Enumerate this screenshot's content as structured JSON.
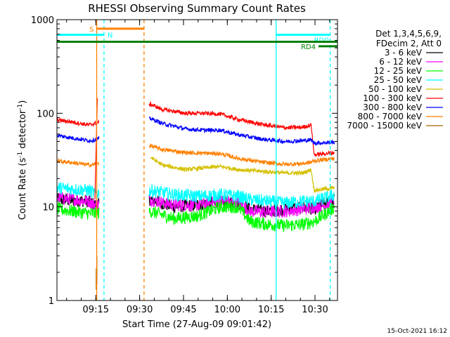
{
  "chart_data": {
    "type": "line",
    "title": "RHESSI Observing Summary Count Rates",
    "xlabel": "Start Time (27-Aug-09 09:01:42)",
    "ylabel_main": "Count Rate (s",
    "ylabel_sup1": "-1",
    "ylabel_mid": " detector",
    "ylabel_sup2": "-1",
    "ylabel_end": ")",
    "y_scale": "log",
    "ylim": [
      1,
      1000
    ],
    "xlim_minutes": [
      0,
      96
    ],
    "x_ticks": [
      {
        "label": "09:15",
        "minute": 13.3
      },
      {
        "label": "09:30",
        "minute": 28.3
      },
      {
        "label": "09:45",
        "minute": 43.3
      },
      {
        "label": "10:00",
        "minute": 58.3
      },
      {
        "label": "10:15",
        "minute": 73.3
      },
      {
        "label": "10:30",
        "minute": 88.3
      }
    ],
    "y_ticks": [
      {
        "label": "1",
        "value": 1
      },
      {
        "label": "10",
        "value": 10
      },
      {
        "label": "100",
        "value": 100
      },
      {
        "label": "1000",
        "value": 1000
      }
    ],
    "legend": {
      "header1": "Det 1,3,4,5,6,9,",
      "header2": "FDecim 2, Att 0",
      "placement": "right",
      "entries": [
        {
          "label": "3 - 6 keV",
          "color": "#000000"
        },
        {
          "label": "6 - 12 keV",
          "color": "#ff00ff"
        },
        {
          "label": "12 - 25 keV",
          "color": "#00ff00"
        },
        {
          "label": "25 - 50 keV",
          "color": "#00ffff"
        },
        {
          "label": "50 - 100 keV",
          "color": "#d4c000"
        },
        {
          "label": "100 - 300 keV",
          "color": "#ff0000"
        },
        {
          "label": "300 - 800 keV",
          "color": "#0000ff"
        },
        {
          "label": "800 - 7000 keV",
          "color": "#ff8000"
        },
        {
          "label": "7000 - 15000 keV",
          "color": "#a06000"
        }
      ]
    },
    "gaps_minutes": [
      [
        14.5,
        31.5
      ]
    ],
    "series": [
      {
        "name": "3 - 6 keV",
        "color": "#000000",
        "x": [
          0,
          11,
          13,
          32,
          40,
          48,
          56,
          62,
          66,
          72,
          78,
          84,
          88,
          92,
          95
        ],
        "y": [
          12,
          11.5,
          10.5,
          12,
          10,
          10.5,
          11.5,
          11,
          9.5,
          9,
          9.5,
          10,
          9.5,
          11,
          12
        ]
      },
      {
        "name": "6 - 12 keV",
        "color": "#ff00ff",
        "x": [
          0,
          11,
          13,
          32,
          40,
          48,
          56,
          62,
          66,
          72,
          78,
          84,
          88,
          92,
          95
        ],
        "y": [
          12.5,
          11.5,
          10.5,
          12,
          10.5,
          10.5,
          11.5,
          11,
          9,
          8.8,
          9,
          9.5,
          10,
          10.5,
          12
        ]
      },
      {
        "name": "12 - 25 keV",
        "color": "#00ff00",
        "x": [
          0,
          11,
          13,
          32,
          40,
          48,
          56,
          62,
          66,
          72,
          78,
          84,
          88,
          92,
          95
        ],
        "y": [
          9.5,
          8.5,
          8.5,
          9,
          7.5,
          8,
          10,
          10,
          7,
          6.5,
          6.3,
          6.5,
          7,
          8.5,
          10
        ]
      },
      {
        "name": "25 - 50 keV",
        "color": "#00ffff",
        "x": [
          0,
          11,
          13,
          32,
          40,
          48,
          56,
          62,
          66,
          72,
          78,
          84,
          88,
          92,
          95
        ],
        "y": [
          16,
          15,
          14,
          15,
          13.5,
          13,
          13.5,
          13,
          12,
          11.5,
          11,
          11.5,
          11.5,
          12.5,
          13.5
        ]
      },
      {
        "name": "50 - 100 keV",
        "color": "#d4c000",
        "x": [
          32,
          36,
          44,
          50,
          56,
          62,
          70,
          78,
          84,
          87,
          88,
          95
        ],
        "y": [
          34,
          28,
          25,
          26,
          27,
          25,
          24,
          23,
          23,
          25,
          15,
          16
        ]
      },
      {
        "name": "100 - 300 keV",
        "color": "#ff0000",
        "x": [
          0,
          6,
          11,
          13,
          32,
          36,
          44,
          50,
          56,
          62,
          70,
          78,
          84,
          87,
          88,
          95
        ],
        "y": [
          85,
          80,
          75,
          78,
          125,
          110,
          100,
          100,
          98,
          86,
          76,
          70,
          71,
          75,
          36,
          38
        ]
      },
      {
        "name": "300 - 800 keV",
        "color": "#0000ff",
        "x": [
          0,
          6,
          11,
          13,
          32,
          36,
          44,
          50,
          56,
          62,
          70,
          78,
          84,
          87,
          88,
          95
        ],
        "y": [
          58,
          54,
          51,
          52,
          88,
          78,
          68,
          66,
          66,
          59,
          53,
          50,
          51,
          52,
          48,
          49
        ]
      },
      {
        "name": "800 - 7000 keV",
        "color": "#ff8000",
        "x": [
          0,
          6,
          11,
          13,
          32,
          36,
          44,
          50,
          56,
          62,
          70,
          78,
          84,
          87,
          88,
          95
        ],
        "y": [
          31,
          29.5,
          28,
          28.5,
          45,
          41,
          38,
          37.5,
          37,
          33,
          30,
          28.5,
          29,
          30,
          31,
          33
        ]
      }
    ],
    "spike": {
      "x_minutes": 13.8,
      "peak": 145
    },
    "brown_spikes": [
      [
        13.4,
        1.3,
        2.2
      ],
      [
        13.7,
        1.5,
        3.0
      ]
    ],
    "vertical_lines": [
      {
        "x_minutes": 13.6,
        "color": "#ff8000",
        "style": "solid"
      },
      {
        "x_minutes": 16.1,
        "color": "#00ffff",
        "style": "dashed"
      },
      {
        "x_minutes": 29.8,
        "color": "#ff8000",
        "style": "dashed"
      },
      {
        "x_minutes": 75.0,
        "color": "#00ffff",
        "style": "solid"
      },
      {
        "x_minutes": 93.5,
        "color": "#00ffff",
        "style": "dashed"
      }
    ],
    "flag_bars": [
      {
        "label": "S",
        "label_side": "left",
        "color": "#ff8000",
        "x_start": 13.6,
        "x_end": 29.8,
        "value": 800
      },
      {
        "label": "N",
        "label_side": "right",
        "color": "#00ffff",
        "x_start": 0,
        "x_end": 16.1,
        "value": 690
      },
      {
        "label": "RD0",
        "label_side": "right-above",
        "color": "#00ffff",
        "x_start": 75.0,
        "x_end": 93.5,
        "value": 690
      },
      {
        "label": "",
        "label_side": "none",
        "color": "#008000",
        "x_start": 0,
        "x_end": 96,
        "value": 580
      },
      {
        "label": "RD4",
        "label_side": "left",
        "color": "#008000",
        "x_start": 89.5,
        "x_end": 96,
        "value": 520
      }
    ],
    "timestamp": "15-Oct-2021 16:12"
  }
}
